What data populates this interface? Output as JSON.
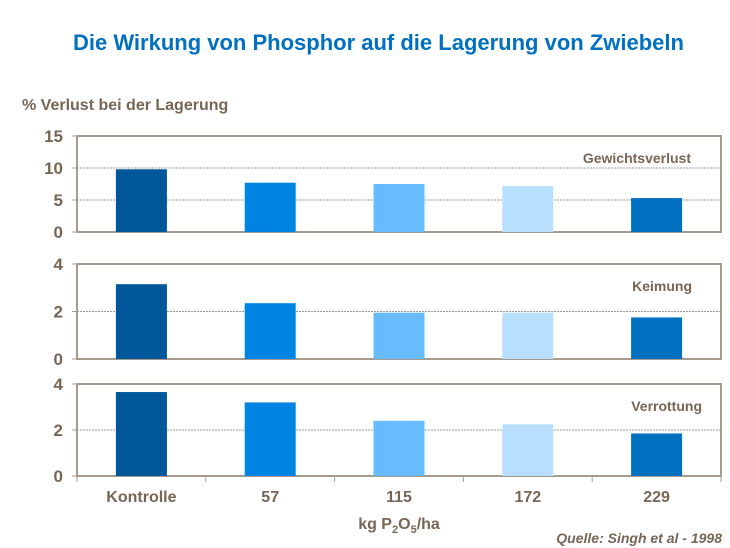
{
  "chart_data": [
    {
      "type": "bar",
      "panel_label": "Gewichtsverlust",
      "categories": [
        "Kontrolle",
        "57",
        "115",
        "172",
        "229"
      ],
      "values": [
        9.8,
        7.7,
        7.5,
        7.2,
        5.3
      ],
      "ylim": [
        0,
        15
      ],
      "yticks": [
        0,
        5,
        10,
        15
      ]
    },
    {
      "type": "bar",
      "panel_label": "Keimung",
      "categories": [
        "Kontrolle",
        "57",
        "115",
        "172",
        "229"
      ],
      "values": [
        3.15,
        2.35,
        1.95,
        1.95,
        1.75
      ],
      "ylim": [
        0,
        4
      ],
      "yticks": [
        0,
        2,
        4
      ]
    },
    {
      "type": "bar",
      "panel_label": "Verrottung",
      "categories": [
        "Kontrolle",
        "57",
        "115",
        "172",
        "229"
      ],
      "values": [
        3.65,
        3.2,
        2.4,
        2.25,
        1.85
      ],
      "ylim": [
        0,
        4
      ],
      "yticks": [
        0,
        2,
        4
      ]
    }
  ],
  "title": "Die Wirkung von Phosphor auf die Lagerung von Zwiebeln",
  "ylabel": "%  Verlust bei der Lagerung",
  "xlabel": {
    "pre": "kg P",
    "sub1": "2",
    "mid": "O",
    "sub2": "5",
    "post": "/ha"
  },
  "categories": [
    "Kontrolle",
    "57",
    "115",
    "172",
    "229"
  ],
  "source": "Quelle: Singh et al - 1998",
  "grid": true,
  "bar_colors": [
    "#00579a",
    "#0084e4",
    "#66bcfe",
    "#b8e0fe",
    "#0070c0"
  ],
  "text_color": "#776655",
  "title_color": "#0070c0"
}
